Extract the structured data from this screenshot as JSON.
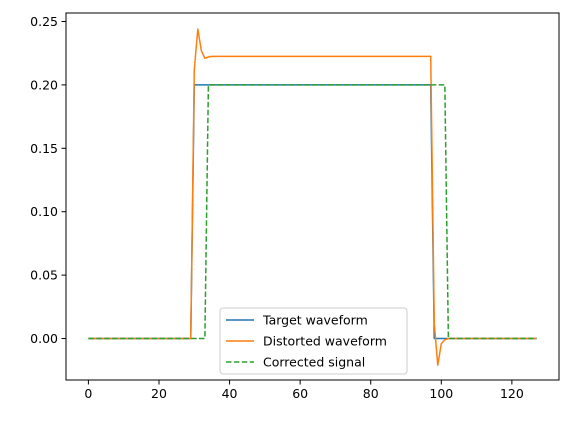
{
  "chart_data": {
    "type": "line",
    "title": "",
    "xlabel": "",
    "ylabel": "",
    "xlim": [
      -6.35,
      133.35
    ],
    "ylim": [
      -0.0327,
      0.2567
    ],
    "xticks": [
      0,
      20,
      40,
      60,
      80,
      100,
      120
    ],
    "xtick_labels": [
      "0",
      "20",
      "40",
      "60",
      "80",
      "100",
      "120"
    ],
    "yticks": [
      0.0,
      0.05,
      0.1,
      0.15,
      0.2,
      0.25
    ],
    "ytick_labels": [
      "0.00",
      "0.05",
      "0.10",
      "0.15",
      "0.20",
      "0.25"
    ],
    "grid": false,
    "legend_position": "lower center",
    "series": [
      {
        "name": "Target waveform",
        "color": "#1f77b4",
        "style": "solid",
        "x": [
          0,
          29,
          30,
          97,
          98,
          127
        ],
        "y": [
          0.0,
          0.0,
          0.2,
          0.2,
          0.0,
          0.0
        ]
      },
      {
        "name": "Distorted waveform",
        "color": "#ff7f0e",
        "style": "solid",
        "x": [
          0,
          29,
          30,
          31,
          32,
          33,
          34,
          35,
          40,
          50,
          60,
          70,
          80,
          90,
          97,
          98,
          99,
          100,
          101,
          102,
          103,
          127
        ],
        "y": [
          0.0,
          0.0,
          0.212,
          0.244,
          0.227,
          0.221,
          0.222,
          0.2225,
          0.2225,
          0.2225,
          0.2225,
          0.2225,
          0.2225,
          0.2225,
          0.2225,
          0.012,
          -0.021,
          -0.004,
          -0.001,
          0.0,
          0.0,
          0.0
        ]
      },
      {
        "name": "Corrected signal",
        "color": "#2ca02c",
        "style": "dashed",
        "x": [
          0,
          33,
          34,
          101,
          102,
          127
        ],
        "y": [
          0.0,
          0.0,
          0.2,
          0.2,
          0.0,
          0.0
        ]
      }
    ]
  }
}
